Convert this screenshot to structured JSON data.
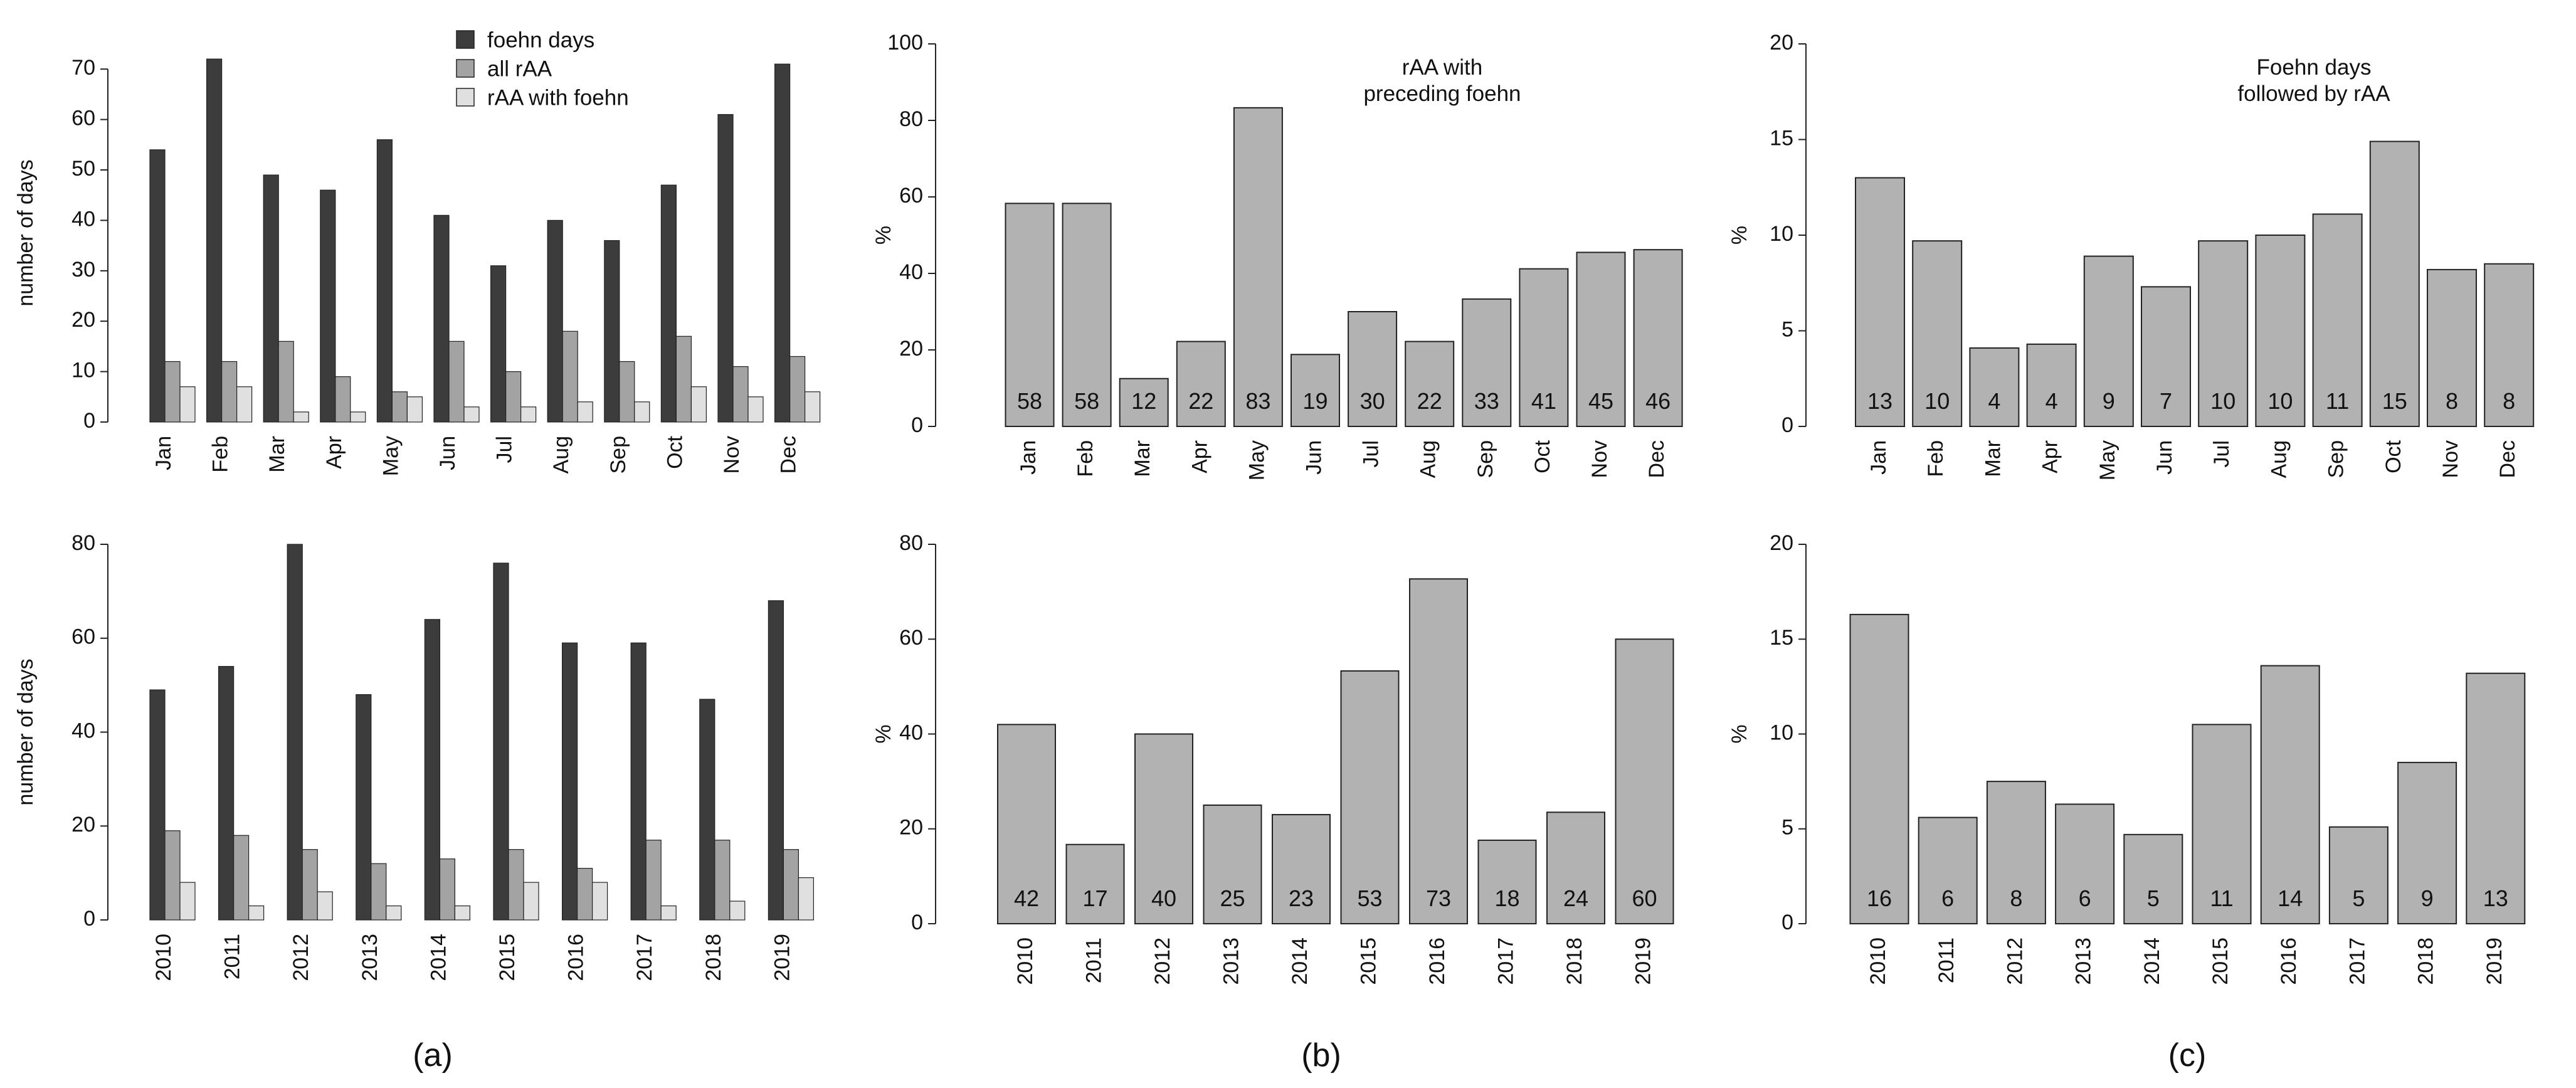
{
  "colors": {
    "foehn": "#3c3c3c",
    "all_raa": "#a3a3a3",
    "raa_foehn": "#e0e0e0",
    "bar_gray": "#b2b2b2",
    "stroke": "#222222"
  },
  "panel_labels": [
    "(a)",
    "(b)",
    "(c)"
  ],
  "chart_data": [
    {
      "id": "a-top",
      "type": "bar",
      "categories": [
        "Jan",
        "Feb",
        "Mar",
        "Apr",
        "May",
        "Jun",
        "Jul",
        "Aug",
        "Sep",
        "Oct",
        "Nov",
        "Dec"
      ],
      "series": [
        {
          "name": "foehn days",
          "values": [
            54,
            72,
            49,
            46,
            56,
            41,
            31,
            40,
            36,
            47,
            61,
            71
          ]
        },
        {
          "name": "all rAA",
          "values": [
            12,
            12,
            16,
            9,
            6,
            16,
            10,
            18,
            12,
            17,
            11,
            13
          ]
        },
        {
          "name": "rAA   with foehn",
          "values": [
            7,
            7,
            2,
            2,
            5,
            3,
            3,
            4,
            4,
            7,
            5,
            6
          ]
        }
      ],
      "ylabel": "number of days",
      "ylim": [
        0,
        75
      ],
      "yticks": [
        0,
        10,
        20,
        30,
        40,
        50,
        60,
        70
      ],
      "legend": [
        "foehn days",
        "all rAA",
        "rAA   with foehn"
      ],
      "legend_position": "top-right"
    },
    {
      "id": "b-top",
      "type": "bar",
      "categories": [
        "Jan",
        "Feb",
        "Mar",
        "Apr",
        "May",
        "Jun",
        "Jul",
        "Aug",
        "Sep",
        "Oct",
        "Nov",
        "Dec"
      ],
      "values": [
        58.3,
        58.3,
        12.5,
        22.2,
        83.3,
        18.8,
        30,
        22.2,
        33.3,
        41.2,
        45.5,
        46.2
      ],
      "labels": [
        "58",
        "58",
        "12",
        "22",
        "83",
        "19",
        "30",
        "22",
        "33",
        "41",
        "45",
        "46"
      ],
      "ylabel": "%",
      "ylim": [
        0,
        100
      ],
      "yticks": [
        0,
        20,
        40,
        60,
        80,
        100
      ],
      "annotation": [
        "rAA with",
        "preceding foehn"
      ]
    },
    {
      "id": "c-top",
      "type": "bar",
      "categories": [
        "Jan",
        "Feb",
        "Mar",
        "Apr",
        "May",
        "Jun",
        "Jul",
        "Aug",
        "Sep",
        "Oct",
        "Nov",
        "Dec"
      ],
      "values": [
        13,
        9.7,
        4.1,
        4.3,
        8.9,
        7.3,
        9.7,
        10,
        11.1,
        14.9,
        8.2,
        8.5
      ],
      "labels": [
        "13",
        "10",
        "4",
        "4",
        "9",
        "7",
        "10",
        "10",
        "11",
        "15",
        "8",
        "8"
      ],
      "ylabel": "%",
      "ylim": [
        0,
        20
      ],
      "yticks": [
        0,
        5,
        10,
        15,
        20
      ],
      "annotation": [
        "Foehn days",
        "followed by rAA"
      ]
    },
    {
      "id": "a-bottom",
      "type": "bar",
      "categories": [
        "2010",
        "2011",
        "2012",
        "2013",
        "2014",
        "2015",
        "2016",
        "2017",
        "2018",
        "2019"
      ],
      "series": [
        {
          "name": "foehn days",
          "values": [
            49,
            54,
            80,
            48,
            64,
            76,
            59,
            59,
            47,
            68
          ]
        },
        {
          "name": "all rAA",
          "values": [
            19,
            18,
            15,
            12,
            13,
            15,
            11,
            17,
            17,
            15
          ]
        },
        {
          "name": "rAA   with foehn",
          "values": [
            8,
            3,
            6,
            3,
            3,
            8,
            8,
            3,
            4,
            9
          ]
        }
      ],
      "ylabel": "number of days",
      "ylim": [
        0,
        80
      ],
      "yticks": [
        0,
        20,
        40,
        60,
        80
      ]
    },
    {
      "id": "b-bottom",
      "type": "bar",
      "categories": [
        "2010",
        "2011",
        "2012",
        "2013",
        "2014",
        "2015",
        "2016",
        "2017",
        "2018",
        "2019"
      ],
      "values": [
        42,
        16.7,
        40,
        25,
        23,
        53.3,
        72.7,
        17.6,
        23.5,
        60
      ],
      "labels": [
        "42",
        "17",
        "40",
        "25",
        "23",
        "53",
        "73",
        "18",
        "24",
        "60"
      ],
      "ylabel": "%",
      "ylim": [
        0,
        80
      ],
      "yticks": [
        0,
        20,
        40,
        60,
        80
      ]
    },
    {
      "id": "c-bottom",
      "type": "bar",
      "categories": [
        "2010",
        "2011",
        "2012",
        "2013",
        "2014",
        "2015",
        "2016",
        "2017",
        "2018",
        "2019"
      ],
      "values": [
        16.3,
        5.6,
        7.5,
        6.3,
        4.7,
        10.5,
        13.6,
        5.1,
        8.5,
        13.2
      ],
      "labels": [
        "16",
        "6",
        "8",
        "6",
        "5",
        "11",
        "14",
        "5",
        "9",
        "13"
      ],
      "ylabel": "%",
      "ylim": [
        0,
        20
      ],
      "yticks": [
        0,
        5,
        10,
        15,
        20
      ]
    }
  ]
}
